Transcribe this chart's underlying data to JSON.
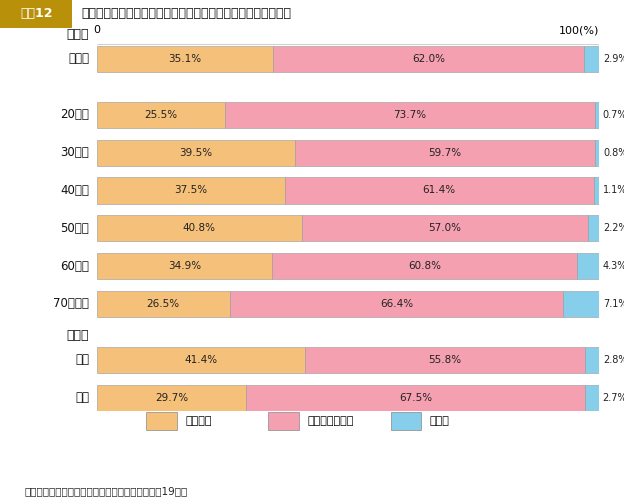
{
  "title": "過去１年間における地域・職場での防災活動の参加経験の有無",
  "title_tag": "図表12",
  "bar_rows": [
    {
      "label": "全　体",
      "participated": 35.1,
      "not_participated": 62.0,
      "no_answer": 2.9
    },
    {
      "label": "20歳代",
      "participated": 25.5,
      "not_participated": 73.7,
      "no_answer": 0.7
    },
    {
      "label": "30歳代",
      "participated": 39.5,
      "not_participated": 59.7,
      "no_answer": 0.8
    },
    {
      "label": "40歳代",
      "participated": 37.5,
      "not_participated": 61.4,
      "no_answer": 1.1
    },
    {
      "label": "50歳代",
      "participated": 40.8,
      "not_participated": 57.0,
      "no_answer": 2.2
    },
    {
      "label": "60歳代",
      "participated": 34.9,
      "not_participated": 60.8,
      "no_answer": 4.3
    },
    {
      "label": "70歳以上",
      "participated": 26.5,
      "not_participated": 66.4,
      "no_answer": 7.1
    },
    {
      "label": "男性",
      "participated": 41.4,
      "not_participated": 55.8,
      "no_answer": 2.8
    },
    {
      "label": "女性",
      "participated": 29.7,
      "not_participated": 67.5,
      "no_answer": 2.7
    }
  ],
  "color_participated": "#F5C07A",
  "color_not_participated": "#F5A0B0",
  "color_no_answer": "#87CEEB",
  "legend_labels": [
    "参加した",
    "参加していない",
    "無回答"
  ],
  "footer": "資料：防災に関する県民意識調査（三重県，平成19年）",
  "background_color": "#ffffff",
  "header_bg": "#C8A020",
  "tag_text_color": "#ffffff",
  "title_text_color": "#111111"
}
